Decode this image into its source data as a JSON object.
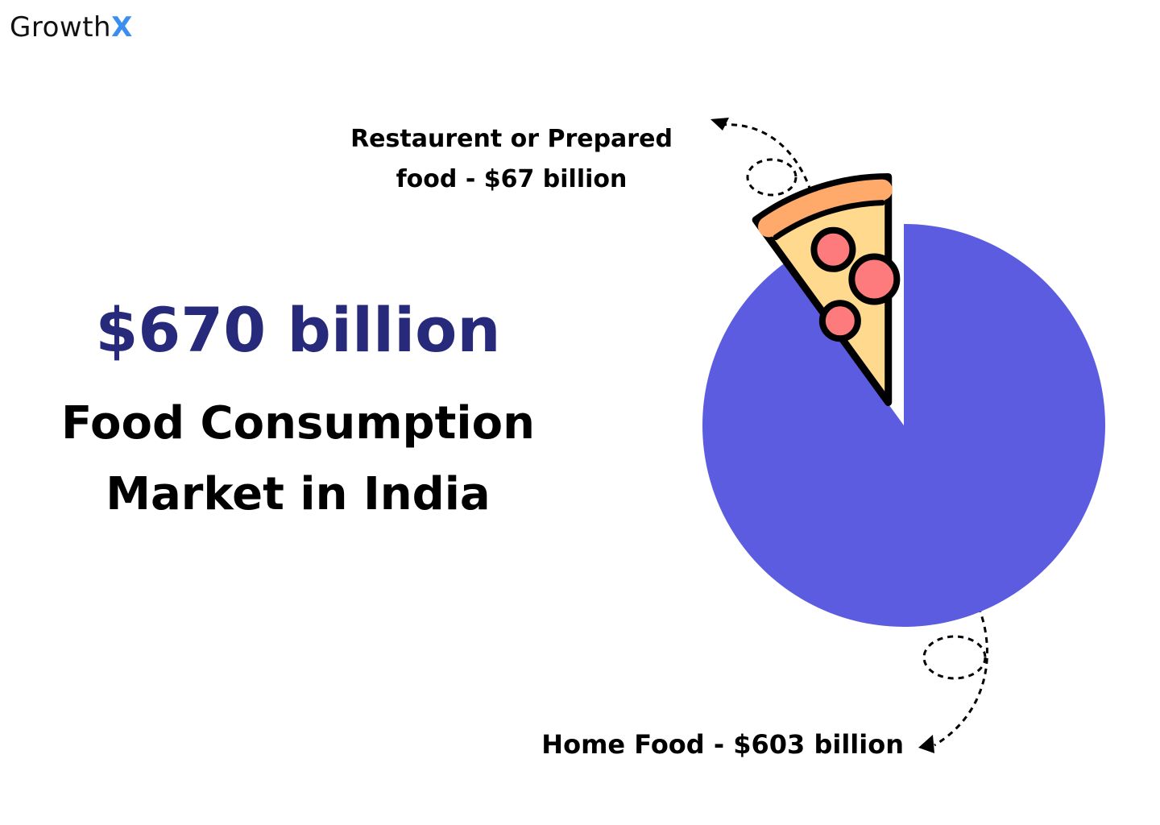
{
  "brand": {
    "text": "Growth",
    "mark": "X"
  },
  "chart_data": {
    "type": "pie",
    "title": "$670 billion",
    "subtitle": "Food Consumption Market in India",
    "values": [
      67,
      603
    ],
    "value_labels": [
      "Restaurent or Prepared food - $67 billion",
      "Home Food - $603 billion"
    ],
    "colors": [
      "#ffd98e",
      "#5b5ce0"
    ]
  }
}
